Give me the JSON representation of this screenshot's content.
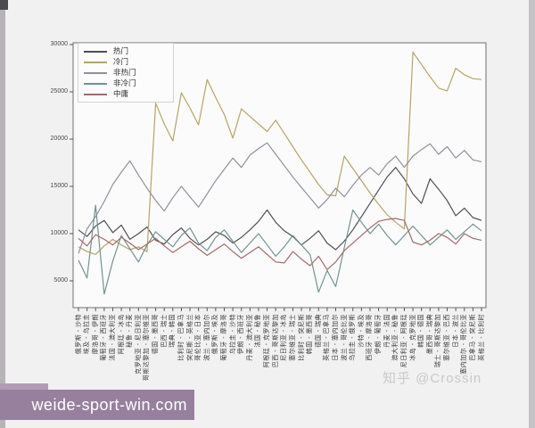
{
  "page": {
    "zhihu_watermark": "知乎 @Crossin",
    "site_watermark": "weide-sport-win.com"
  },
  "chart_data": {
    "type": "line",
    "title": "",
    "xlabel": "",
    "ylabel": "",
    "grid": false,
    "legend_position": "upper left",
    "ylim": [
      2200,
      30600
    ],
    "yticks": [
      5000,
      10000,
      15000,
      20000,
      25000,
      30000
    ],
    "categories": [
      "俄罗斯 - 沙特",
      "埃及 - 乌拉圭",
      "摩洛哥 - 伊朗",
      "葡萄牙 - 西班牙",
      "法国 - 澳大利亚",
      "阿根廷 - 冰岛",
      "秘鲁 - 丹麦",
      "克罗地亚 - 尼日利亚",
      "哥斯达黎加 - 塞尔维亚",
      "德国 - 墨西哥",
      "巴西 - 瑞士",
      "瑞典 - 韩国",
      "比利时 - 巴拿马",
      "突尼斯 - 英格兰",
      "哥伦比亚 - 日本",
      "波兰 - 塞内加尔",
      "俄罗斯 - 埃及",
      "葡萄牙 - 摩洛哥",
      "乌拉圭 - 沙特",
      "伊朗 - 西班牙",
      "丹麦 - 澳大利亚",
      "法国 - 秘鲁",
      "阿根廷 - 克罗地亚",
      "巴西 - 哥斯达黎加",
      "尼日利亚 - 冰岛",
      "塞尔维亚 - 瑞士",
      "比利时 - 突尼斯",
      "韩国 - 墨西哥",
      "德国 - 瑞典",
      "英格兰 - 巴拿马",
      "日本 - 塞内加尔",
      "波兰 - 哥伦比亚",
      "乌拉圭 - 俄罗斯",
      "沙特 - 埃及",
      "西班牙 - 摩洛哥",
      "伊朗 - 葡萄牙",
      "丹麦 - 法国",
      "澳大利亚 - 秘鲁",
      "尼日利亚 - 阿根廷",
      "冰岛 - 克罗地亚",
      "韩国 - 德国",
      "墨西哥 - 瑞典",
      "瑞士 - 哥斯达黎加",
      "塞尔维亚 - 巴西",
      "日本 - 波兰",
      "塞内加尔 - 哥伦比亚",
      "巴拿马 - 突尼斯",
      "英格兰 - 比利时"
    ],
    "series": [
      {
        "name": "热门",
        "color": "#4f4f52",
        "values": [
          10400,
          9700,
          10800,
          11400,
          10100,
          10900,
          9400,
          10000,
          10700,
          9300,
          8900,
          9900,
          10600,
          9500,
          8800,
          9400,
          10200,
          9800,
          9000,
          9600,
          10400,
          11300,
          12500,
          11200,
          10300,
          9700,
          8800,
          9500,
          10300,
          9000,
          8300,
          9200,
          10400,
          11800,
          13200,
          14600,
          16000,
          17000,
          15800,
          14200,
          13200,
          15800,
          14700,
          13500,
          11900,
          12700,
          11700,
          11400
        ]
      },
      {
        "name": "冷门",
        "color": "#b5a563",
        "values": [
          8600,
          8100,
          7800,
          8700,
          9400,
          8800,
          8300,
          8600,
          8100,
          23800,
          21600,
          19800,
          24900,
          23300,
          21500,
          26300,
          24400,
          22600,
          20100,
          23200,
          22400,
          21600,
          20800,
          22000,
          20600,
          19200,
          17800,
          16500,
          15200,
          14100,
          14000,
          18200,
          16900,
          15600,
          14300,
          13100,
          12000,
          11200,
          10500,
          29200,
          27900,
          26600,
          25400,
          25100,
          27500,
          26800,
          26400,
          26300
        ]
      },
      {
        "name": "非热门",
        "color": "#90909c",
        "values": [
          7900,
          10500,
          11800,
          13400,
          15200,
          16500,
          17700,
          16200,
          14800,
          13500,
          12400,
          13800,
          15000,
          13900,
          12800,
          14200,
          15600,
          16800,
          18000,
          17000,
          18300,
          19000,
          19600,
          18400,
          17200,
          16000,
          14900,
          13800,
          12700,
          13600,
          14800,
          13900,
          15100,
          16200,
          17000,
          16200,
          17400,
          18200,
          17000,
          18200,
          18900,
          19500,
          18400,
          19200,
          18000,
          18800,
          17800,
          17600
        ]
      },
      {
        "name": "非冷门",
        "color": "#6f958f",
        "values": [
          7200,
          5300,
          13000,
          3600,
          7100,
          9800,
          8400,
          7000,
          8800,
          10200,
          9400,
          8600,
          9800,
          10600,
          9000,
          8200,
          9600,
          10400,
          9200,
          8000,
          9000,
          10000,
          8800,
          7600,
          8600,
          9800,
          8800,
          7800,
          3800,
          6100,
          4400,
          8500,
          12500,
          11200,
          10000,
          11000,
          9800,
          8800,
          9800,
          10800,
          9800,
          8800,
          9600,
          10400,
          9400,
          10200,
          11000,
          10300
        ]
      },
      {
        "name": "中庸",
        "color": "#a06c68",
        "values": [
          9500,
          8700,
          9900,
          9400,
          8800,
          9600,
          9000,
          8300,
          8900,
          9500,
          8700,
          8000,
          8600,
          9200,
          8400,
          7700,
          8300,
          8900,
          8100,
          7400,
          8000,
          8600,
          7800,
          7000,
          6900,
          8100,
          7300,
          6600,
          7600,
          6200,
          7000,
          8200,
          9000,
          9800,
          10600,
          11300,
          11500,
          11600,
          11400,
          9100,
          8800,
          9300,
          10000,
          9600,
          8900,
          10000,
          9500,
          9300
        ]
      }
    ]
  }
}
